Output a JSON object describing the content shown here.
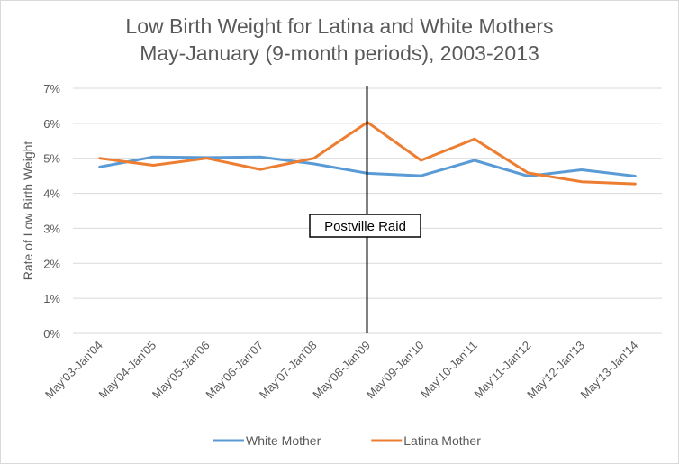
{
  "chart_data": {
    "type": "line",
    "title": "Low Birth Weight for Latina and White Mothers",
    "subtitle": "May-January (9-month periods), 2003-2013",
    "xlabel": "",
    "ylabel": "Rate of Low Birth Weight",
    "ylim": [
      0,
      7
    ],
    "yticks": [
      "0%",
      "1%",
      "2%",
      "3%",
      "4%",
      "5%",
      "6%",
      "7%"
    ],
    "grid": true,
    "legend_position": "bottom",
    "categories": [
      "May'03-Jan'04",
      "May'04-Jan'05",
      "May'05-Jan'06",
      "May'06-Jan'07",
      "May'07-Jan'08",
      "May'08-Jan'09",
      "May'09-Jan'10",
      "May'10-Jan'11",
      "May'11-Jan'12",
      "May'12-Jan'13",
      "May'13-Jan'14"
    ],
    "series": [
      {
        "name": "White Mother",
        "color": "#5B9BD5",
        "values": [
          4.75,
          5.04,
          5.02,
          5.04,
          4.84,
          4.57,
          4.5,
          4.94,
          4.49,
          4.67,
          4.49
        ]
      },
      {
        "name": "Latina Mother",
        "color": "#ED7D31",
        "values": [
          5.0,
          4.8,
          5.0,
          4.68,
          5.0,
          6.03,
          4.94,
          5.55,
          4.58,
          4.33,
          4.27
        ]
      }
    ],
    "annotation": {
      "label": "Postville Raid",
      "category": "May'08-Jan'09"
    }
  }
}
